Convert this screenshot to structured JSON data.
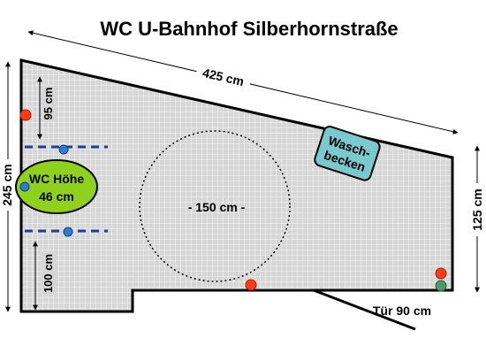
{
  "title": "WC U-Bahnhof Silberhornstraße",
  "dimensions": {
    "top_width": "425 cm",
    "left_height": "245 cm",
    "right_height": "125 cm",
    "upper_clearance": "95 cm",
    "lower_clearance": "100 cm",
    "turning_circle": "- 150 cm -",
    "door": "Tür 90 cm"
  },
  "fixtures": {
    "wc_label": "WC Höhe",
    "wc_height": "46 cm",
    "sink_line1": "Wasch-",
    "sink_line2": "becken"
  },
  "colors": {
    "floor": "#d6d6d6",
    "grid_line": "#ffffff",
    "wall": "#000000",
    "wc_fill": "#8fd11c",
    "sink_fill": "#79c9cf",
    "marker_red": "#ff3b1a",
    "marker_blue": "#2a7dd1",
    "marker_green": "#4c9a6a",
    "grab_bar": "#1f3d99"
  }
}
